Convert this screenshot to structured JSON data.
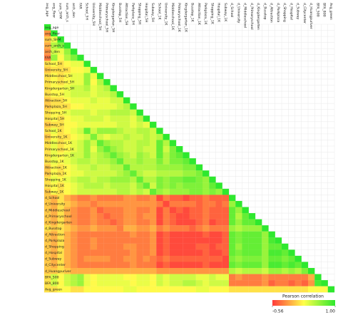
{
  "chart_data": {
    "type": "heatmap",
    "labels": [
      "avg_age",
      "avg_floor",
      "sum_SHM",
      "sum_arch_s",
      "arch_den",
      "FAR",
      "School_5H",
      "University_5H",
      "Middleschool_5H",
      "Primaryschool_5H",
      "Kingdergarten_5H",
      "Busstop_5H",
      "Attraction_5H",
      "Parkplaza_5H",
      "Shopping_5H",
      "Hospital_5H",
      "Subway_5H",
      "School_1K",
      "University_1K",
      "Middleschool_1K",
      "Primaryschool_1K",
      "Kingdergarten_1K",
      "Busstop_1K",
      "Attraction_1K",
      "Parkplaza_1K",
      "Shopping_1K",
      "Hospital_1K",
      "Subway_1K",
      "d_School",
      "d_University",
      "d_Middleschool",
      "d_Primaryschool",
      "d_Kingdergarten",
      "d_Busstop",
      "d_Attraction",
      "d_Parkplaza",
      "d_Shopping",
      "d_Hospital",
      "d_Subway",
      "d_Citycenter",
      "d_Huangpuriver",
      "BFA_500",
      "BFA_800",
      "Avg_green"
    ],
    "matrix": [
      [
        1
      ],
      [
        -0.2,
        1
      ],
      [
        0.0,
        0.3,
        1
      ],
      [
        -0.1,
        0.5,
        0.7,
        1
      ],
      [
        -0.2,
        0.4,
        0.3,
        0.6,
        1
      ],
      [
        -0.3,
        0.6,
        0.2,
        0.5,
        0.7,
        1
      ],
      [
        0.1,
        0.2,
        0.1,
        0.2,
        0.3,
        0.3,
        1
      ],
      [
        0.0,
        0.1,
        0.1,
        0.1,
        0.2,
        0.2,
        0.3,
        1
      ],
      [
        0.1,
        0.2,
        0.1,
        0.2,
        0.3,
        0.3,
        0.6,
        0.3,
        1
      ],
      [
        0.1,
        0.2,
        0.1,
        0.2,
        0.3,
        0.3,
        0.6,
        0.2,
        0.5,
        1
      ],
      [
        0.1,
        0.2,
        0.2,
        0.3,
        0.4,
        0.4,
        0.5,
        0.3,
        0.4,
        0.5,
        1
      ],
      [
        0.1,
        0.2,
        0.2,
        0.3,
        0.4,
        0.4,
        0.4,
        0.3,
        0.4,
        0.4,
        0.5,
        1
      ],
      [
        0.0,
        0.1,
        0.1,
        0.2,
        0.3,
        0.3,
        0.3,
        0.4,
        0.3,
        0.3,
        0.4,
        0.4,
        1
      ],
      [
        0.0,
        0.1,
        0.1,
        0.1,
        0.2,
        0.2,
        0.3,
        0.3,
        0.3,
        0.3,
        0.3,
        0.4,
        0.5,
        1
      ],
      [
        0.1,
        0.2,
        0.2,
        0.3,
        0.4,
        0.4,
        0.4,
        0.3,
        0.4,
        0.4,
        0.5,
        0.5,
        0.5,
        0.4,
        1
      ],
      [
        0.1,
        0.2,
        0.1,
        0.2,
        0.3,
        0.3,
        0.4,
        0.4,
        0.4,
        0.3,
        0.4,
        0.4,
        0.4,
        0.3,
        0.5,
        1
      ],
      [
        0.0,
        0.1,
        0.1,
        0.2,
        0.2,
        0.3,
        0.3,
        0.3,
        0.3,
        0.3,
        0.3,
        0.4,
        0.4,
        0.3,
        0.4,
        0.3,
        1
      ],
      [
        0.1,
        0.3,
        0.1,
        0.2,
        0.3,
        0.4,
        0.8,
        0.4,
        0.6,
        0.6,
        0.6,
        0.5,
        0.4,
        0.4,
        0.5,
        0.5,
        0.4,
        1
      ],
      [
        0.0,
        0.2,
        0.1,
        0.1,
        0.2,
        0.3,
        0.4,
        0.7,
        0.4,
        0.3,
        0.4,
        0.4,
        0.5,
        0.4,
        0.4,
        0.5,
        0.4,
        0.5,
        1
      ],
      [
        0.1,
        0.3,
        0.1,
        0.2,
        0.3,
        0.4,
        0.6,
        0.4,
        0.8,
        0.6,
        0.5,
        0.5,
        0.4,
        0.4,
        0.5,
        0.5,
        0.4,
        0.8,
        0.5,
        1
      ],
      [
        0.1,
        0.3,
        0.1,
        0.2,
        0.3,
        0.4,
        0.6,
        0.3,
        0.6,
        0.8,
        0.6,
        0.5,
        0.4,
        0.4,
        0.5,
        0.4,
        0.4,
        0.8,
        0.4,
        0.7,
        1
      ],
      [
        0.1,
        0.3,
        0.2,
        0.3,
        0.4,
        0.4,
        0.6,
        0.4,
        0.5,
        0.6,
        0.8,
        0.6,
        0.5,
        0.4,
        0.6,
        0.5,
        0.4,
        0.8,
        0.5,
        0.7,
        0.8,
        1
      ],
      [
        0.1,
        0.3,
        0.2,
        0.3,
        0.4,
        0.5,
        0.5,
        0.4,
        0.5,
        0.5,
        0.6,
        0.8,
        0.5,
        0.5,
        0.6,
        0.5,
        0.5,
        0.7,
        0.5,
        0.7,
        0.7,
        0.8,
        1
      ],
      [
        0.0,
        0.2,
        0.1,
        0.2,
        0.3,
        0.4,
        0.4,
        0.5,
        0.4,
        0.4,
        0.5,
        0.5,
        0.8,
        0.5,
        0.5,
        0.5,
        0.5,
        0.6,
        0.6,
        0.6,
        0.6,
        0.7,
        0.7,
        1
      ],
      [
        0.0,
        0.2,
        0.1,
        0.2,
        0.3,
        0.3,
        0.4,
        0.4,
        0.4,
        0.4,
        0.4,
        0.5,
        0.6,
        0.8,
        0.5,
        0.4,
        0.4,
        0.5,
        0.5,
        0.5,
        0.5,
        0.6,
        0.6,
        0.7,
        1
      ],
      [
        0.1,
        0.3,
        0.2,
        0.3,
        0.4,
        0.5,
        0.5,
        0.4,
        0.5,
        0.5,
        0.6,
        0.6,
        0.6,
        0.5,
        0.8,
        0.5,
        0.5,
        0.7,
        0.6,
        0.7,
        0.7,
        0.8,
        0.8,
        0.7,
        0.6,
        1
      ],
      [
        0.1,
        0.2,
        0.1,
        0.2,
        0.3,
        0.4,
        0.5,
        0.5,
        0.5,
        0.4,
        0.5,
        0.5,
        0.5,
        0.4,
        0.6,
        0.8,
        0.4,
        0.7,
        0.6,
        0.7,
        0.6,
        0.7,
        0.7,
        0.7,
        0.6,
        0.8,
        1
      ],
      [
        0.0,
        0.2,
        0.1,
        0.2,
        0.3,
        0.4,
        0.4,
        0.4,
        0.4,
        0.4,
        0.4,
        0.5,
        0.5,
        0.4,
        0.5,
        0.4,
        0.8,
        0.6,
        0.5,
        0.6,
        0.6,
        0.6,
        0.7,
        0.7,
        0.6,
        0.7,
        0.6,
        1
      ],
      [
        0.0,
        -0.1,
        0.1,
        -0.1,
        -0.2,
        -0.3,
        -0.3,
        -0.2,
        -0.3,
        -0.3,
        -0.3,
        -0.3,
        -0.2,
        -0.2,
        -0.3,
        -0.3,
        -0.2,
        -0.5,
        -0.3,
        -0.4,
        -0.4,
        -0.5,
        -0.4,
        -0.4,
        -0.3,
        -0.4,
        -0.4,
        -0.4,
        1
      ],
      [
        0.0,
        -0.1,
        0.1,
        0.0,
        -0.1,
        -0.2,
        -0.2,
        -0.3,
        -0.2,
        -0.2,
        -0.2,
        -0.2,
        -0.2,
        -0.2,
        -0.2,
        -0.2,
        -0.2,
        -0.3,
        -0.5,
        -0.3,
        -0.3,
        -0.3,
        -0.3,
        -0.4,
        -0.3,
        -0.3,
        -0.4,
        -0.3,
        0.6,
        1
      ],
      [
        0.0,
        -0.1,
        0.1,
        -0.1,
        -0.2,
        -0.3,
        -0.3,
        -0.2,
        -0.4,
        -0.3,
        -0.3,
        -0.3,
        -0.2,
        -0.2,
        -0.3,
        -0.3,
        -0.2,
        -0.5,
        -0.3,
        -0.5,
        -0.4,
        -0.5,
        -0.4,
        -0.4,
        -0.3,
        -0.4,
        -0.4,
        -0.4,
        0.8,
        0.6,
        1
      ],
      [
        0.0,
        -0.1,
        0.1,
        -0.1,
        -0.2,
        -0.3,
        -0.3,
        -0.2,
        -0.3,
        -0.4,
        -0.3,
        -0.3,
        -0.2,
        -0.2,
        -0.3,
        -0.2,
        -0.2,
        -0.5,
        -0.3,
        -0.4,
        -0.5,
        -0.5,
        -0.4,
        -0.4,
        -0.3,
        -0.4,
        -0.4,
        -0.4,
        0.8,
        0.5,
        0.8,
        1
      ],
      [
        0.0,
        -0.1,
        0.1,
        -0.1,
        -0.2,
        -0.3,
        -0.3,
        -0.2,
        -0.3,
        -0.3,
        -0.4,
        -0.3,
        -0.2,
        -0.2,
        -0.3,
        -0.3,
        -0.2,
        -0.5,
        -0.3,
        -0.4,
        -0.5,
        -0.5,
        -0.5,
        -0.4,
        -0.3,
        -0.5,
        -0.4,
        -0.4,
        0.8,
        0.6,
        0.8,
        0.8,
        1
      ],
      [
        0.1,
        0.0,
        0.1,
        0.0,
        -0.1,
        -0.2,
        -0.2,
        -0.1,
        -0.2,
        -0.2,
        -0.2,
        -0.3,
        -0.1,
        -0.1,
        -0.2,
        -0.2,
        -0.1,
        -0.3,
        -0.2,
        -0.3,
        -0.3,
        -0.3,
        -0.4,
        -0.3,
        -0.2,
        -0.3,
        -0.3,
        -0.3,
        0.6,
        0.5,
        0.6,
        0.6,
        0.6,
        1
      ],
      [
        0.0,
        -0.1,
        0.1,
        -0.1,
        -0.2,
        -0.3,
        -0.3,
        -0.3,
        -0.3,
        -0.3,
        -0.3,
        -0.3,
        -0.3,
        -0.2,
        -0.3,
        -0.3,
        -0.2,
        -0.5,
        -0.4,
        -0.5,
        -0.5,
        -0.5,
        -0.5,
        -0.5,
        -0.4,
        -0.5,
        -0.5,
        -0.4,
        0.8,
        0.7,
        0.8,
        0.8,
        0.8,
        0.6,
        1
      ],
      [
        0.0,
        -0.1,
        0.1,
        -0.1,
        -0.2,
        -0.3,
        -0.3,
        -0.2,
        -0.3,
        -0.3,
        -0.3,
        -0.3,
        -0.3,
        -0.3,
        -0.3,
        -0.3,
        -0.2,
        -0.5,
        -0.4,
        -0.5,
        -0.5,
        -0.5,
        -0.5,
        -0.5,
        -0.5,
        -0.5,
        -0.5,
        -0.4,
        0.8,
        0.7,
        0.8,
        0.8,
        0.8,
        0.6,
        0.9,
        1
      ],
      [
        0.0,
        -0.1,
        0.1,
        -0.1,
        -0.2,
        -0.3,
        -0.3,
        -0.2,
        -0.3,
        -0.3,
        -0.3,
        -0.3,
        -0.2,
        -0.2,
        -0.3,
        -0.3,
        -0.2,
        -0.5,
        -0.4,
        -0.5,
        -0.5,
        -0.5,
        -0.5,
        -0.4,
        -0.4,
        -0.5,
        -0.4,
        -0.4,
        0.8,
        0.6,
        0.8,
        0.8,
        0.8,
        0.6,
        0.8,
        0.8,
        1
      ],
      [
        0.0,
        -0.1,
        0.1,
        -0.1,
        -0.2,
        -0.3,
        -0.3,
        -0.3,
        -0.3,
        -0.3,
        -0.3,
        -0.3,
        -0.3,
        -0.2,
        -0.3,
        -0.3,
        -0.2,
        -0.5,
        -0.4,
        -0.5,
        -0.5,
        -0.5,
        -0.5,
        -0.5,
        -0.4,
        -0.5,
        -0.5,
        -0.4,
        0.8,
        0.7,
        0.8,
        0.8,
        0.8,
        0.6,
        0.9,
        0.9,
        0.8,
        1
      ],
      [
        0.0,
        -0.1,
        0.1,
        -0.1,
        -0.2,
        -0.3,
        -0.2,
        -0.2,
        -0.2,
        -0.2,
        -0.3,
        -0.3,
        -0.2,
        -0.2,
        -0.3,
        -0.2,
        -0.3,
        -0.4,
        -0.3,
        -0.4,
        -0.4,
        -0.4,
        -0.4,
        -0.4,
        -0.4,
        -0.4,
        -0.4,
        -0.5,
        0.7,
        0.6,
        0.7,
        0.7,
        0.7,
        0.6,
        0.8,
        0.8,
        0.7,
        0.8,
        1
      ],
      [
        0.0,
        -0.1,
        0.1,
        -0.1,
        -0.2,
        -0.3,
        -0.3,
        -0.3,
        -0.3,
        -0.3,
        -0.3,
        -0.3,
        -0.3,
        -0.2,
        -0.3,
        -0.3,
        -0.3,
        -0.5,
        -0.4,
        -0.5,
        -0.5,
        -0.5,
        -0.5,
        -0.5,
        -0.4,
        -0.5,
        -0.5,
        -0.5,
        0.8,
        0.7,
        0.8,
        0.8,
        0.8,
        0.6,
        0.9,
        0.9,
        0.8,
        0.9,
        0.8,
        1
      ],
      [
        0.0,
        0.0,
        0.1,
        0.0,
        -0.1,
        -0.1,
        -0.1,
        -0.1,
        -0.1,
        -0.1,
        -0.1,
        -0.1,
        -0.1,
        -0.1,
        -0.1,
        -0.1,
        -0.1,
        -0.2,
        -0.2,
        -0.2,
        -0.2,
        -0.2,
        -0.2,
        -0.2,
        -0.2,
        -0.2,
        -0.2,
        -0.2,
        0.5,
        0.4,
        0.5,
        0.5,
        0.5,
        0.4,
        0.6,
        0.6,
        0.5,
        0.6,
        0.5,
        0.7,
        1
      ],
      [
        0.1,
        0.4,
        0.2,
        0.4,
        0.5,
        0.6,
        0.3,
        0.2,
        0.3,
        0.3,
        0.3,
        0.3,
        0.2,
        0.2,
        0.3,
        0.3,
        0.2,
        0.4,
        0.3,
        0.4,
        0.4,
        0.4,
        0.4,
        0.3,
        0.3,
        0.4,
        0.3,
        0.3,
        -0.3,
        -0.2,
        -0.3,
        -0.3,
        -0.3,
        -0.2,
        -0.3,
        -0.3,
        -0.3,
        -0.3,
        -0.3,
        -0.3,
        -0.1,
        1
      ],
      [
        0.1,
        0.4,
        0.2,
        0.4,
        0.5,
        0.6,
        0.3,
        0.2,
        0.3,
        0.3,
        0.3,
        0.3,
        0.3,
        0.2,
        0.3,
        0.3,
        0.2,
        0.4,
        0.3,
        0.4,
        0.4,
        0.5,
        0.5,
        0.4,
        0.3,
        0.4,
        0.4,
        0.4,
        -0.3,
        -0.3,
        -0.3,
        -0.3,
        -0.3,
        -0.2,
        -0.4,
        -0.3,
        -0.3,
        -0.4,
        -0.3,
        -0.4,
        -0.2,
        0.9,
        1
      ],
      [
        0.1,
        0.1,
        0.2,
        0.2,
        0.1,
        0.1,
        0.2,
        0.2,
        0.2,
        0.2,
        0.2,
        0.2,
        0.3,
        0.3,
        0.2,
        0.2,
        0.2,
        0.2,
        0.2,
        0.2,
        0.2,
        0.2,
        0.2,
        0.3,
        0.3,
        0.2,
        0.2,
        0.2,
        0.1,
        0.1,
        0.1,
        0.1,
        0.1,
        0.1,
        0.1,
        0.1,
        0.1,
        0.1,
        0.1,
        0.1,
        0.2,
        0.2,
        0.2,
        1
      ]
    ],
    "colorbar": {
      "title": "Pearson correlation",
      "zlim": [
        -0.56,
        1
      ],
      "ticks": [
        -0.56,
        {
          "value": 1,
          "label": "1.00"
        }
      ],
      "colors": [
        "#ff3b3b",
        "#ffff4a",
        "#2ee82e"
      ]
    },
    "grid": true
  }
}
